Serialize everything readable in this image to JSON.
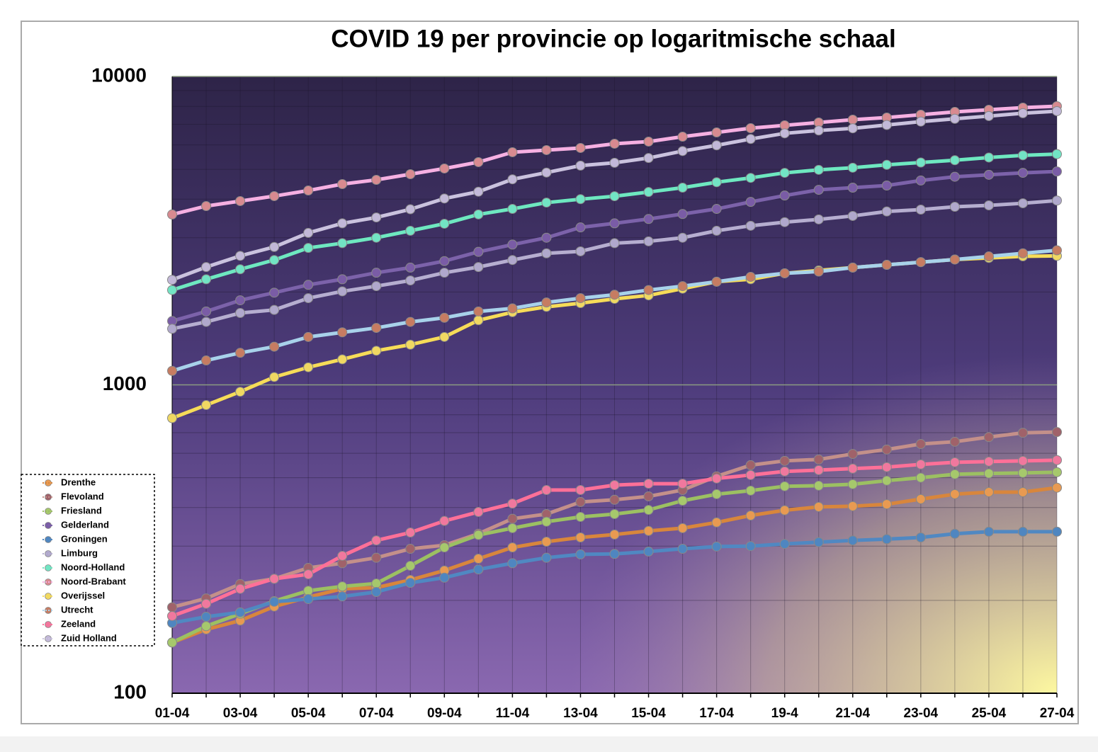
{
  "chart_data": {
    "type": "line",
    "title": "COVID 19 per provincie op logaritmische schaal",
    "log_scale": true,
    "grid": true,
    "legend": "lower left",
    "categories": [
      "01-04",
      null,
      "03-04",
      null,
      "05-04",
      null,
      "07-04",
      null,
      "09-04",
      null,
      "11-04",
      null,
      "13-04",
      null,
      "15-04",
      null,
      "17-04",
      null,
      "19-4",
      null,
      "21-04",
      null,
      "23-04",
      null,
      "25-04",
      null,
      "27-04"
    ],
    "ylim": [
      100,
      10000
    ],
    "yticks": [
      100,
      1000,
      10000
    ],
    "series": [
      {
        "name": "Drenthe",
        "color": "#d8863c",
        "marker_color": "#e89a52",
        "values": [
          146,
          161,
          172,
          191,
          205,
          218,
          220,
          233,
          250,
          273,
          297,
          310,
          320,
          327,
          336,
          343,
          358,
          377,
          392,
          402,
          404,
          410,
          426,
          442,
          449,
          449,
          464
        ]
      },
      {
        "name": "Flevoland",
        "color": "#c4908a",
        "marker_color": "#a0626a",
        "values": [
          190,
          203,
          226,
          235,
          255,
          264,
          275,
          294,
          302,
          329,
          368,
          381,
          417,
          424,
          435,
          456,
          505,
          549,
          567,
          573,
          597,
          617,
          643,
          654,
          677,
          699,
          703
        ]
      },
      {
        "name": "Friesland",
        "color": "#9cc062",
        "marker_color": "#a6c86c",
        "values": [
          146,
          165,
          181,
          199,
          215,
          222,
          227,
          259,
          297,
          326,
          343,
          360,
          373,
          381,
          393,
          421,
          442,
          454,
          469,
          471,
          476,
          489,
          500,
          513,
          516,
          518,
          521
        ]
      },
      {
        "name": "Gelderland",
        "color": "#7c62aa",
        "marker_color": "#7a5ca6",
        "values": [
          1610,
          1730,
          1880,
          1990,
          2110,
          2200,
          2310,
          2400,
          2520,
          2700,
          2850,
          3000,
          3240,
          3340,
          3450,
          3580,
          3720,
          3920,
          4110,
          4290,
          4360,
          4430,
          4600,
          4730,
          4800,
          4870,
          4920
        ]
      },
      {
        "name": "Groningen",
        "color": "#5088c2",
        "marker_color": "#4f86c0",
        "values": [
          169,
          177,
          183,
          198,
          202,
          206,
          213,
          228,
          237,
          252,
          264,
          275,
          282,
          283,
          288,
          294,
          299,
          300,
          305,
          309,
          313,
          316,
          320,
          329,
          334,
          334,
          334
        ]
      },
      {
        "name": "Limburg",
        "color": "#b6aed0",
        "marker_color": "#b0a8cc",
        "values": [
          1520,
          1600,
          1710,
          1750,
          1910,
          2010,
          2090,
          2180,
          2310,
          2410,
          2540,
          2670,
          2710,
          2880,
          2920,
          3000,
          3160,
          3280,
          3370,
          3440,
          3530,
          3650,
          3700,
          3780,
          3820,
          3880,
          3960
        ]
      },
      {
        "name": "Noord-Holland",
        "color": "#6ee8c0",
        "marker_color": "#72e4c4",
        "values": [
          2030,
          2200,
          2370,
          2540,
          2780,
          2880,
          3000,
          3160,
          3330,
          3570,
          3720,
          3900,
          4000,
          4090,
          4220,
          4360,
          4540,
          4690,
          4870,
          4980,
          5060,
          5170,
          5260,
          5350,
          5460,
          5550,
          5600
        ]
      },
      {
        "name": "Noord-Brabant",
        "color": "#f6b0e2",
        "marker_color": "#d88a90",
        "values": [
          3568,
          3800,
          3944,
          4093,
          4268,
          4477,
          4621,
          4821,
          5030,
          5275,
          5680,
          5771,
          5864,
          6052,
          6149,
          6379,
          6585,
          6798,
          6943,
          7092,
          7244,
          7361,
          7516,
          7677,
          7800,
          7925,
          8010
        ]
      },
      {
        "name": "Overijssel",
        "color": "#f6dc58",
        "marker_color": "#f0d862",
        "values": [
          780,
          860,
          950,
          1060,
          1140,
          1210,
          1290,
          1350,
          1430,
          1620,
          1720,
          1790,
          1840,
          1900,
          1950,
          2050,
          2160,
          2200,
          2300,
          2350,
          2400,
          2450,
          2500,
          2550,
          2580,
          2610,
          2620
        ]
      },
      {
        "name": "Utrecht",
        "color": "#a8d2ea",
        "marker_color": "#c67c62",
        "values": [
          1110,
          1200,
          1270,
          1330,
          1430,
          1480,
          1530,
          1600,
          1650,
          1730,
          1770,
          1850,
          1910,
          1960,
          2030,
          2090,
          2160,
          2240,
          2300,
          2330,
          2400,
          2450,
          2500,
          2550,
          2610,
          2670,
          2730
        ]
      },
      {
        "name": "Zeeland",
        "color": "#ff7098",
        "marker_color": "#f0789e",
        "values": [
          178,
          195,
          218,
          235,
          243,
          279,
          313,
          332,
          362,
          387,
          412,
          456,
          456,
          473,
          478,
          478,
          497,
          510,
          524,
          529,
          535,
          541,
          552,
          561,
          564,
          567,
          570
        ]
      },
      {
        "name": "Zuid Holland",
        "color": "#cac2de",
        "marker_color": "#c2b8d8",
        "values": [
          2190,
          2410,
          2620,
          2800,
          3110,
          3340,
          3490,
          3710,
          4020,
          4230,
          4640,
          4880,
          5140,
          5250,
          5440,
          5730,
          5980,
          6270,
          6540,
          6680,
          6790,
          6960,
          7140,
          7290,
          7440,
          7600,
          7720
        ]
      }
    ]
  }
}
